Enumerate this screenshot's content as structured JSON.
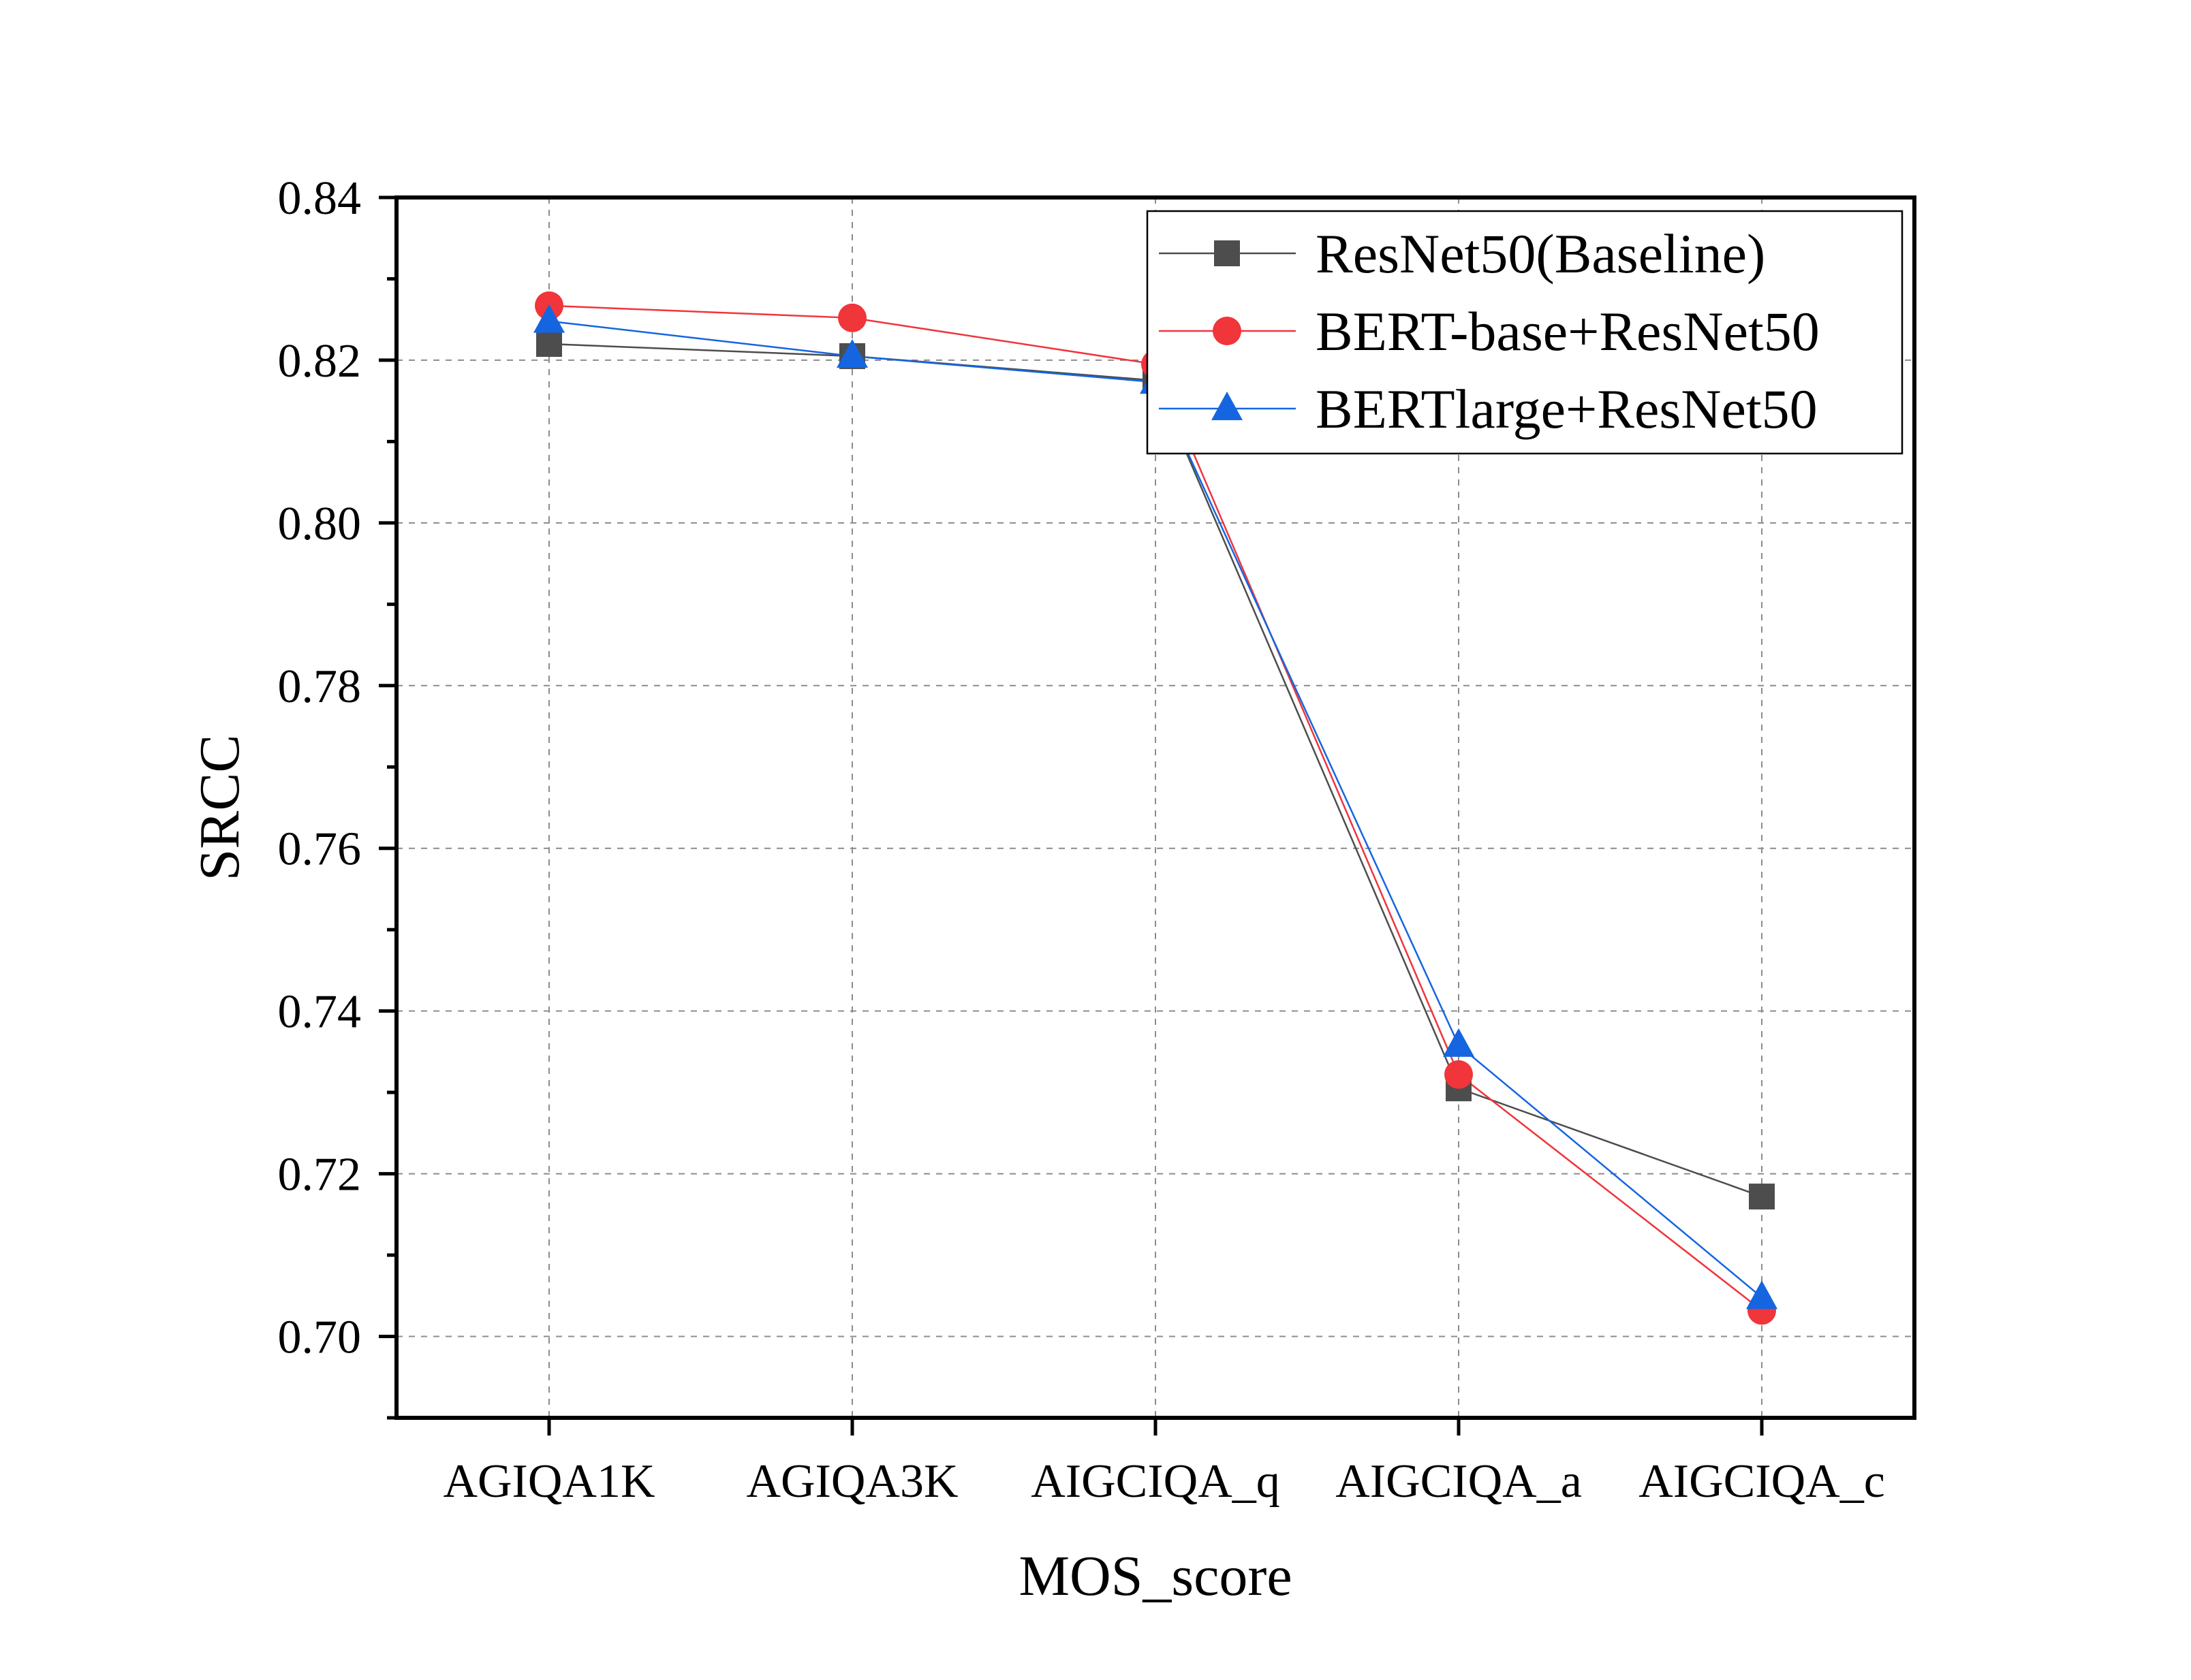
{
  "chart_data": {
    "type": "line",
    "title": "",
    "xlabel": "MOS_score",
    "ylabel": "SRCC",
    "categories": [
      "AGIQA1K",
      "AGIQA3K",
      "AIGCIQA_q",
      "AIGCIQA_a",
      "AIGCIQA_c"
    ],
    "ylim": [
      0.69,
      0.84
    ],
    "yticks": [
      "0.70",
      "0.72",
      "0.74",
      "0.76",
      "0.78",
      "0.80",
      "0.82",
      "0.84"
    ],
    "ytick_values": [
      0.7,
      0.72,
      0.74,
      0.76,
      0.78,
      0.8,
      0.82,
      0.84
    ],
    "grid": true,
    "grid_style": "dashed",
    "legend_position": "top-right",
    "series": [
      {
        "name": "ResNet50(Baseline)",
        "marker": "square",
        "color": "#4d4d4d",
        "values": [
          0.822,
          0.8205,
          0.8175,
          0.7305,
          0.7172
        ]
      },
      {
        "name": "BERT-base+ResNet50",
        "marker": "circle",
        "color": "#f0353b",
        "values": [
          0.8267,
          0.8252,
          0.8195,
          0.7322,
          0.7032
        ]
      },
      {
        "name": "BERTlarge+ResNet50",
        "marker": "triangle",
        "color": "#1565e0",
        "values": [
          0.8248,
          0.8205,
          0.8173,
          0.7358,
          0.7048
        ]
      }
    ]
  }
}
